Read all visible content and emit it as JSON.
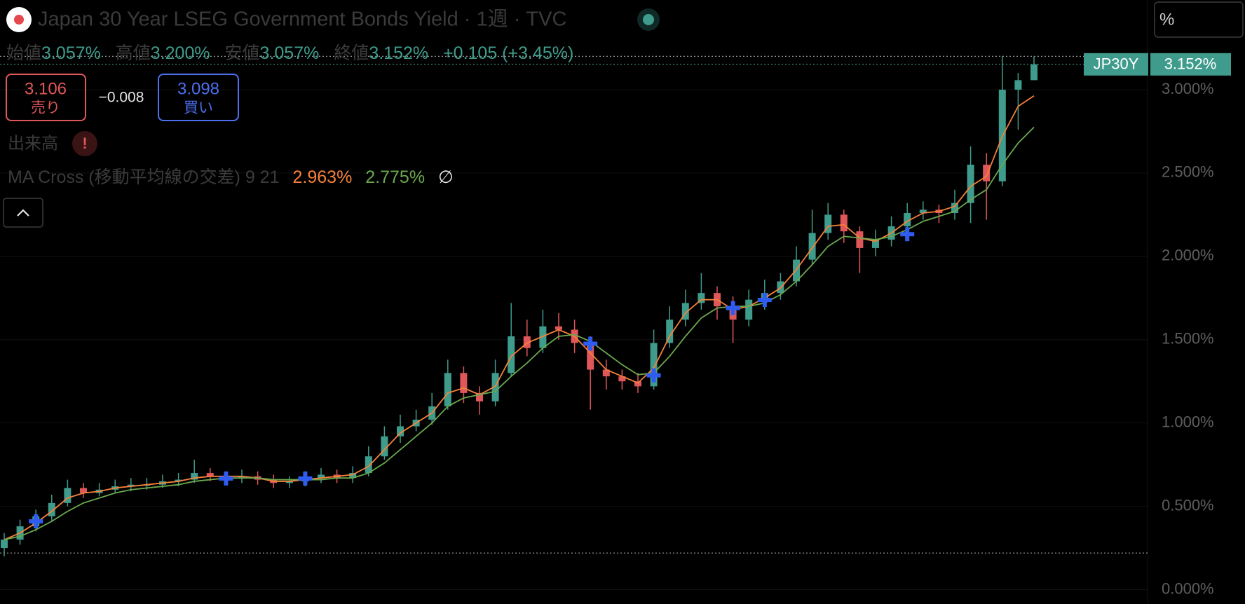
{
  "header": {
    "title": "Japan 30 Year LSEG Government Bonds Yield · 1週 · TVC",
    "ohlc": [
      {
        "label": "始値",
        "value": "3.057%"
      },
      {
        "label": "高値",
        "value": "3.200%"
      },
      {
        "label": "安値",
        "value": "3.057%"
      },
      {
        "label": "終値",
        "value": "3.152%"
      }
    ],
    "change": "+0.105 (+3.45%)",
    "sell": {
      "price": "3.106",
      "label": "売り"
    },
    "spread": "−0.008",
    "buy": {
      "price": "3.098",
      "label": "買い"
    },
    "volume": "出来高",
    "alert": "!",
    "indicator": {
      "name": "MA Cross (移動平均線の交差) 9 21",
      "values": [
        "2.963%",
        "2.775%"
      ],
      "icon": "∅"
    },
    "unit_box": "%"
  },
  "chart_data": {
    "type": "candlestick",
    "title": "Japan 30 Year LSEG Government Bonds Yield",
    "symbol": "JP30Y",
    "last_price": {
      "value": 3.152,
      "label": "3.152%"
    },
    "price_lines": [
      3.2,
      0.22
    ],
    "up_color": "#3f9c8c",
    "down_color": "#e0575a",
    "candles": {
      "open": [
        0.25,
        0.3,
        0.38,
        0.44,
        0.52,
        0.61,
        0.58,
        0.6,
        0.62,
        0.63,
        0.63,
        0.65,
        0.66,
        0.7,
        0.68,
        0.67,
        0.68,
        0.66,
        0.64,
        0.65,
        0.67,
        0.69,
        0.67,
        0.7,
        0.8,
        0.92,
        0.98,
        1.02,
        1.1,
        1.3,
        1.18,
        1.13,
        1.3,
        1.52,
        1.45,
        1.58,
        1.56,
        1.48,
        1.32,
        1.28,
        1.25,
        1.22,
        1.48,
        1.62,
        1.72,
        1.78,
        1.7,
        1.62,
        1.74,
        1.78,
        1.85,
        1.98,
        2.14,
        2.25,
        2.15,
        2.05,
        2.1,
        2.18,
        2.26,
        2.28,
        2.26,
        2.32,
        2.55,
        2.45,
        3.0,
        3.057
      ],
      "high": [
        0.34,
        0.42,
        0.48,
        0.57,
        0.66,
        0.64,
        0.64,
        0.66,
        0.67,
        0.67,
        0.69,
        0.7,
        0.78,
        0.73,
        0.71,
        0.72,
        0.71,
        0.69,
        0.68,
        0.71,
        0.73,
        0.72,
        0.74,
        0.86,
        0.98,
        1.05,
        1.08,
        1.18,
        1.38,
        1.34,
        1.22,
        1.38,
        1.72,
        1.62,
        1.68,
        1.66,
        1.62,
        1.52,
        1.38,
        1.32,
        1.3,
        1.56,
        1.7,
        1.8,
        1.9,
        1.82,
        1.76,
        1.8,
        1.86,
        1.9,
        2.06,
        2.28,
        2.32,
        2.28,
        2.18,
        2.16,
        2.24,
        2.32,
        2.33,
        2.31,
        2.4,
        2.66,
        2.62,
        3.2,
        3.1,
        3.2
      ],
      "low": [
        0.2,
        0.27,
        0.35,
        0.41,
        0.5,
        0.55,
        0.56,
        0.58,
        0.59,
        0.6,
        0.61,
        0.62,
        0.64,
        0.65,
        0.64,
        0.64,
        0.63,
        0.61,
        0.61,
        0.62,
        0.64,
        0.64,
        0.64,
        0.68,
        0.78,
        0.88,
        0.95,
        0.99,
        1.08,
        1.12,
        1.05,
        1.1,
        1.28,
        1.4,
        1.42,
        1.5,
        1.42,
        1.08,
        1.2,
        1.2,
        1.18,
        1.2,
        1.45,
        1.58,
        1.68,
        1.62,
        1.48,
        1.58,
        1.68,
        1.74,
        1.82,
        1.95,
        2.1,
        2.08,
        1.9,
        2.0,
        2.06,
        2.14,
        2.22,
        2.2,
        2.22,
        2.2,
        2.22,
        2.42,
        2.76,
        3.057
      ],
      "close": [
        0.3,
        0.38,
        0.44,
        0.52,
        0.61,
        0.58,
        0.6,
        0.62,
        0.63,
        0.63,
        0.65,
        0.66,
        0.7,
        0.68,
        0.67,
        0.68,
        0.66,
        0.64,
        0.65,
        0.67,
        0.69,
        0.67,
        0.7,
        0.8,
        0.92,
        0.98,
        1.02,
        1.1,
        1.3,
        1.18,
        1.13,
        1.3,
        1.52,
        1.45,
        1.58,
        1.56,
        1.48,
        1.32,
        1.28,
        1.25,
        1.22,
        1.48,
        1.62,
        1.72,
        1.78,
        1.7,
        1.62,
        1.74,
        1.78,
        1.85,
        1.98,
        2.14,
        2.25,
        2.15,
        2.05,
        2.1,
        2.18,
        2.26,
        2.28,
        2.26,
        2.32,
        2.55,
        2.45,
        3.0,
        3.057,
        3.152
      ]
    },
    "series": [
      {
        "color": "#f5813b",
        "values": [
          0.3,
          0.34,
          0.4,
          0.47,
          0.55,
          0.58,
          0.59,
          0.61,
          0.62,
          0.63,
          0.64,
          0.65,
          0.67,
          0.68,
          0.68,
          0.68,
          0.67,
          0.65,
          0.65,
          0.66,
          0.67,
          0.68,
          0.69,
          0.74,
          0.84,
          0.94,
          1.0,
          1.06,
          1.18,
          1.21,
          1.17,
          1.22,
          1.4,
          1.48,
          1.52,
          1.56,
          1.52,
          1.42,
          1.32,
          1.28,
          1.24,
          1.33,
          1.52,
          1.66,
          1.74,
          1.74,
          1.68,
          1.7,
          1.75,
          1.81,
          1.92,
          2.05,
          2.18,
          2.19,
          2.11,
          2.09,
          2.14,
          2.21,
          2.26,
          2.27,
          2.3,
          2.42,
          2.48,
          2.72,
          2.9,
          2.963
        ]
      },
      {
        "color": "#6aa84f",
        "values": [
          0.3,
          0.32,
          0.36,
          0.41,
          0.47,
          0.52,
          0.55,
          0.58,
          0.6,
          0.61,
          0.62,
          0.63,
          0.65,
          0.66,
          0.67,
          0.67,
          0.67,
          0.66,
          0.66,
          0.66,
          0.66,
          0.67,
          0.67,
          0.7,
          0.76,
          0.84,
          0.92,
          1.0,
          1.1,
          1.15,
          1.17,
          1.19,
          1.28,
          1.36,
          1.45,
          1.52,
          1.53,
          1.49,
          1.42,
          1.35,
          1.29,
          1.3,
          1.4,
          1.52,
          1.63,
          1.69,
          1.7,
          1.7,
          1.72,
          1.77,
          1.85,
          1.95,
          2.06,
          2.12,
          2.11,
          2.1,
          2.12,
          2.16,
          2.21,
          2.24,
          2.27,
          2.34,
          2.4,
          2.55,
          2.68,
          2.775
        ]
      }
    ],
    "crosses": {
      "index": [
        2,
        14,
        19,
        37,
        41,
        46,
        48,
        57
      ],
      "values": [
        0.41,
        0.667,
        0.667,
        1.476,
        1.286,
        1.69,
        1.738,
        2.133
      ],
      "color": "#2f5cf0"
    },
    "ylim": [
      -0.086,
      3.538
    ],
    "yticks": [
      {
        "value": 0,
        "label": "0.000%"
      },
      {
        "value": 0.5,
        "label": "0.500%"
      },
      {
        "value": 1,
        "label": "1.000%"
      },
      {
        "value": 1.5,
        "label": "1.500%"
      },
      {
        "value": 2,
        "label": "2.000%"
      },
      {
        "value": 2.5,
        "label": "2.500%"
      },
      {
        "value": 3,
        "label": "3.000%"
      }
    ],
    "grid": true
  }
}
